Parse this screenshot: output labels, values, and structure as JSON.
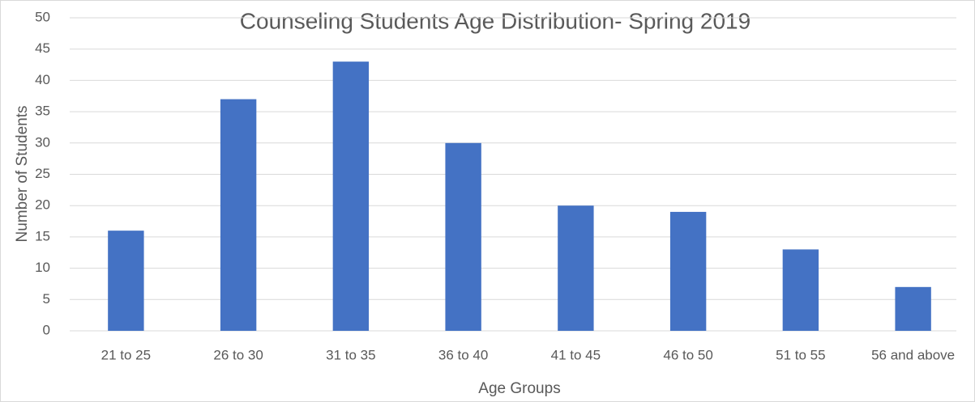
{
  "chart_data": {
    "type": "bar",
    "title": "Counseling Students Age Distribution- Spring 2019",
    "x_label": "Age Groups",
    "y_label": "Number of Students",
    "categories": [
      "21 to 25",
      "26 to 30",
      "31 to 35",
      "36 to 40",
      "41 to 45",
      "46 to 50",
      "51 to 55",
      "56 and above"
    ],
    "values": [
      16,
      37,
      43,
      30,
      20,
      19,
      13,
      7
    ],
    "color": "#4472c4",
    "ylim": [
      0,
      50
    ],
    "yticks": [
      0,
      5,
      10,
      15,
      20,
      25,
      30,
      35,
      40,
      45,
      50
    ],
    "grid": true
  }
}
